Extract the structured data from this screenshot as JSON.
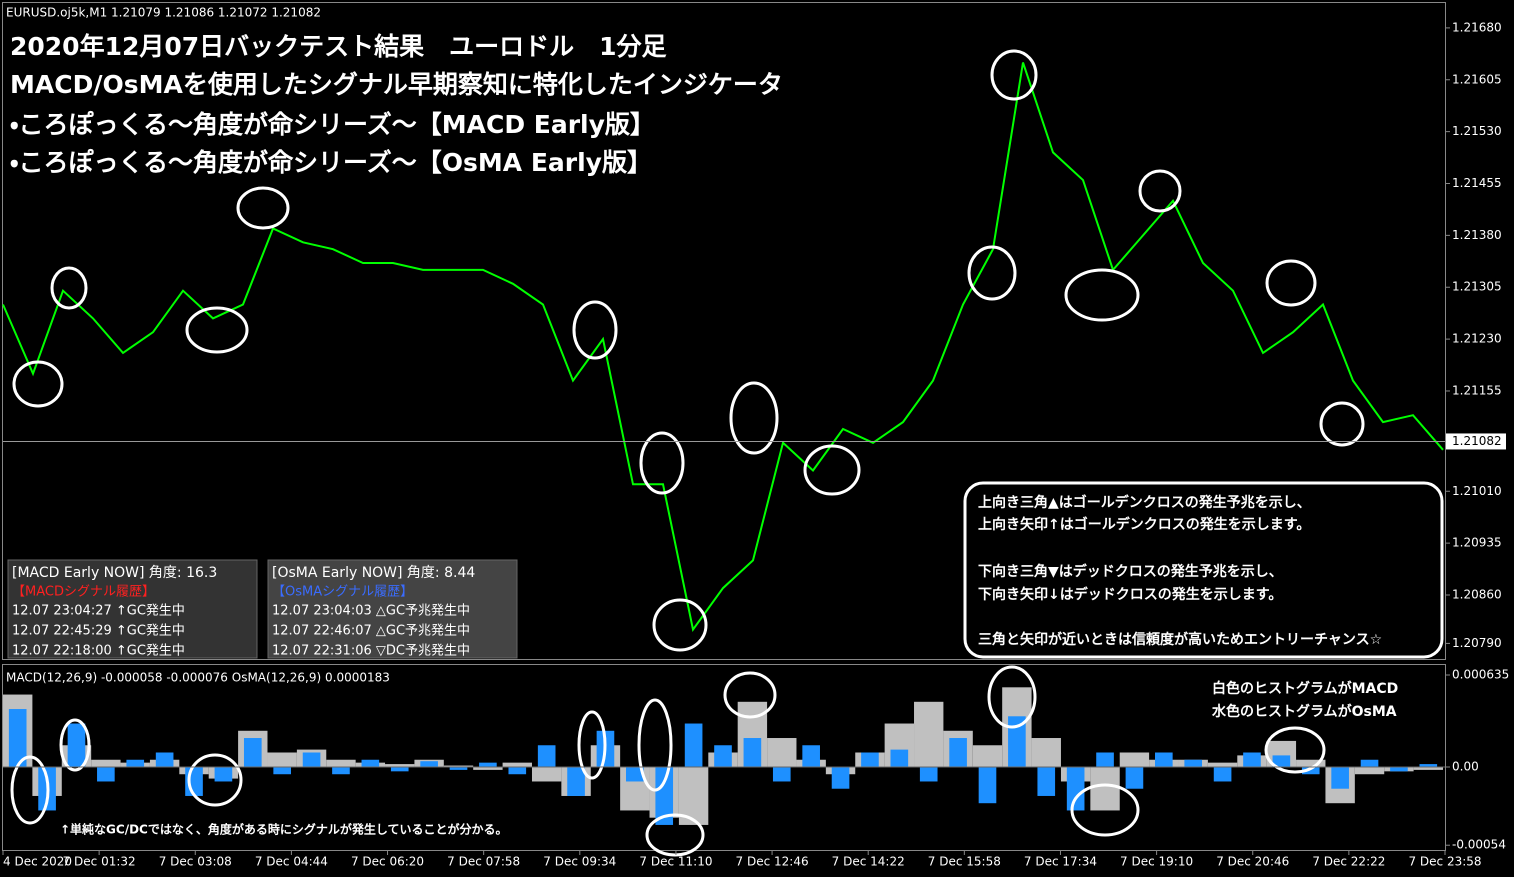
{
  "header": "EURUSD.oj5k,M1  1.21079 1.21086 1.21072 1.21082",
  "title_lines": [
    "2020年12月07日バックテスト結果　ユーロドル　1分足",
    "MACD/OsMAを使用したシグナル早期察知に特化したインジケータ",
    "・ころぽっくる〜角度が命シリーズ〜【MACD Early版】",
    "・ころぽっくる〜角度が命シリーズ〜【OsMA Early版】"
  ],
  "price_chart": {
    "type": "line",
    "color": "#00ff00",
    "values": [
      1.2128,
      1.2118,
      1.213,
      1.2126,
      1.2121,
      1.2124,
      1.213,
      1.2126,
      1.2128,
      1.2139,
      1.2137,
      1.2136,
      1.2134,
      1.2134,
      1.2133,
      1.2133,
      1.2133,
      1.2131,
      1.2128,
      1.2117,
      1.2123,
      1.2102,
      1.2102,
      1.2081,
      1.2087,
      1.2091,
      1.2108,
      1.2104,
      1.211,
      1.2108,
      1.2111,
      1.2117,
      1.2128,
      1.2136,
      1.2163,
      1.215,
      1.2146,
      1.2133,
      1.2138,
      1.2143,
      1.2134,
      1.213,
      1.2121,
      1.2124,
      1.2128,
      1.2117,
      1.2111,
      1.2112,
      1.2107
    ],
    "ylim": [
      1.20766,
      1.21716
    ],
    "yticks": [
      {
        "value": 1.2168,
        "label": "1.21680"
      },
      {
        "value": 1.21605,
        "label": "1.21605"
      },
      {
        "value": 1.2153,
        "label": "1.21530"
      },
      {
        "value": 1.21455,
        "label": "1.21455"
      },
      {
        "value": 1.2138,
        "label": "1.21380"
      },
      {
        "value": 1.21305,
        "label": "1.21305"
      },
      {
        "value": 1.2123,
        "label": "1.21230"
      },
      {
        "value": 1.21155,
        "label": "1.21155"
      },
      {
        "value": 1.2101,
        "label": "1.21010"
      },
      {
        "value": 1.20935,
        "label": "1.20935"
      },
      {
        "value": 1.2086,
        "label": "1.20860"
      },
      {
        "value": 1.2079,
        "label": "1.20790"
      }
    ],
    "current_price": {
      "value": 1.21082,
      "label": "1.21082"
    }
  },
  "indicator_chart": {
    "type": "bar",
    "header": "MACD(12,26,9) -0.000058 -0.000076  OsMA(12,26,9) 0.0000183",
    "ylim": [
      -0.000573,
      0.000704
    ],
    "yticks": [
      0.000635,
      {
        "value": 0,
        "label": "0.00"
      },
      -0.00054
    ],
    "series": [
      {
        "name": "MACD",
        "color": "#c0c0c0",
        "values": [
          0.0005,
          -0.0002,
          0.00015,
          5e-05,
          3e-05,
          5e-05,
          -5e-05,
          -8e-05,
          0.00025,
          0.0001,
          0.00012,
          5e-05,
          3e-05,
          2e-05,
          5e-05,
          1e-05,
          -2e-05,
          3e-05,
          -0.0001,
          -0.0002,
          0.00015,
          -0.0003,
          -0.00035,
          -0.0004,
          0.0001,
          0.00045,
          0.0002,
          5e-05,
          -5e-05,
          0.0001,
          0.0003,
          0.00045,
          0.00025,
          0.00015,
          0.00055,
          0.0002,
          -0.0001,
          -0.0003,
          0.0001,
          5e-05,
          5e-05,
          3e-05,
          8e-05,
          0.00018,
          5e-05,
          -0.00025,
          -5e-05,
          -3e-05,
          -2e-05
        ]
      },
      {
        "name": "OsMA",
        "color": "#1e90ff",
        "values": [
          0.0004,
          -0.0003,
          0.0003,
          -0.0001,
          5e-05,
          0.0001,
          -0.0002,
          -0.0001,
          0.0002,
          -5e-05,
          0.0001,
          -5e-05,
          5e-05,
          -3e-05,
          4e-05,
          -2e-05,
          3e-05,
          -5e-05,
          0.00015,
          -0.0002,
          0.00025,
          -0.0001,
          -0.0004,
          0.0003,
          0.00015,
          0.0002,
          -0.0001,
          0.00015,
          -0.00015,
          0.0001,
          0.00012,
          -0.0001,
          0.0002,
          -0.00025,
          0.00035,
          -0.0002,
          -0.0003,
          0.0001,
          -0.00015,
          0.0001,
          5e-05,
          -0.0001,
          0.0001,
          8e-05,
          -5e-05,
          -0.00015,
          5e-05,
          -3e-05,
          2e-05
        ]
      }
    ]
  },
  "xticks": [
    "4 Dec 2020",
    "7 Dec 01:32",
    "7 Dec 03:08",
    "7 Dec 04:44",
    "7 Dec 06:20",
    "7 Dec 07:58",
    "7 Dec 09:34",
    "7 Dec 11:10",
    "7 Dec 12:46",
    "7 Dec 14:22",
    "7 Dec 15:58",
    "7 Dec 17:34",
    "7 Dec 19:10",
    "7 Dec 20:46",
    "7 Dec 22:22",
    "7 Dec 23:58"
  ],
  "panels": [
    {
      "title": "[MACD Early NOW] 角度: 16.3",
      "subtitle": "【MACDシグナル履歴】",
      "rows": [
        "12.07 23:04:27 ↑GC発生中",
        "12.07 22:45:29 ↑GC発生中",
        "12.07 22:18:00 ↑GC発生中"
      ]
    },
    {
      "title": "[OsMA Early NOW] 角度: 8.44",
      "subtitle": "【OsMAシグナル履歴】",
      "rows": [
        "12.07 23:04:03 △GC予兆発生中",
        "12.07 22:46:07 △GC予兆発生中",
        "12.07 22:31:06 ▽DC予兆発生中"
      ]
    }
  ],
  "note_box": [
    "上向き三角▲はゴールデンクロスの発生予兆を示し、",
    "上向き矢印↑はゴールデンクロスの発生を示します。",
    "下向き三角▼はデッドクロスの発生予兆を示し、",
    "下向き矢印↓はデッドクロスの発生を示します。",
    "三角と矢印が近いときは信頼度が高いためエントリーチャンス☆"
  ],
  "histogram_notes": [
    "白色のヒストグラムがMACD",
    "水色のヒストグラムがOsMA"
  ],
  "bottom_note": "↑単純なGC/DCではなく、角度がある時にシグナルが発生していることが分かる。"
}
